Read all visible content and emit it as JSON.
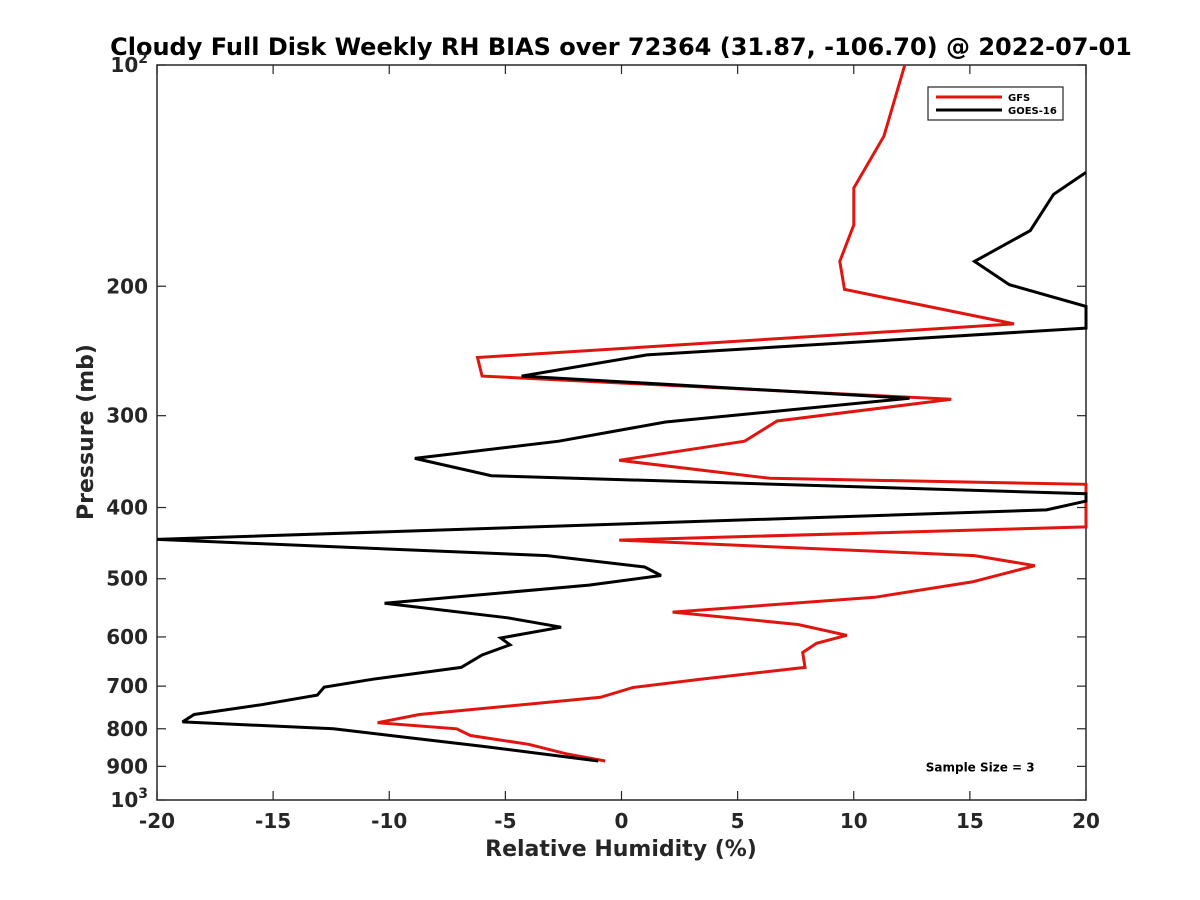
{
  "chart_data": {
    "type": "line",
    "title": "Cloudy Full Disk Weekly RH BIAS over 72364 (31.87, -106.70) @ 2022-07-01",
    "xlabel": "Relative Humidity (%)",
    "ylabel": "Pressure (mb)",
    "xlim": [
      -20,
      20
    ],
    "ylim": [
      100,
      1000
    ],
    "yscale": "log",
    "y_reversed": true,
    "x_ticks": [
      "-20",
      "-15",
      "-10",
      "-5",
      "0",
      "5",
      "10",
      "15",
      "20"
    ],
    "y_ticks": [
      {
        "value": 100,
        "base": "10",
        "exp": "2"
      },
      {
        "value": 200,
        "label": "200"
      },
      {
        "value": 300,
        "label": "300"
      },
      {
        "value": 400,
        "label": "400"
      },
      {
        "value": 500,
        "label": "500"
      },
      {
        "value": 600,
        "label": "600"
      },
      {
        "value": 700,
        "label": "700"
      },
      {
        "value": 800,
        "label": "800"
      },
      {
        "value": 900,
        "label": "900"
      },
      {
        "value": 1000,
        "base": "10",
        "exp": "3"
      }
    ],
    "grid": false,
    "legend_position": "top-right",
    "series": [
      {
        "name": "GFS",
        "color": "#e0150f",
        "points": [
          [
            12.2,
            100
          ],
          [
            11.3,
            125
          ],
          [
            10.0,
            147
          ],
          [
            10.0,
            165
          ],
          [
            9.4,
            185
          ],
          [
            9.6,
            202
          ],
          [
            16.9,
            225
          ],
          [
            -6.2,
            250
          ],
          [
            -6.0,
            265
          ],
          [
            14.2,
            285
          ],
          [
            6.7,
            305
          ],
          [
            5.3,
            325
          ],
          [
            -0.1,
            345
          ],
          [
            6.4,
            365
          ],
          [
            20,
            372
          ],
          [
            20,
            425
          ],
          [
            -0.1,
            443
          ],
          [
            15.2,
            465
          ],
          [
            17.8,
            480
          ],
          [
            15.1,
            505
          ],
          [
            10.9,
            530
          ],
          [
            2.2,
            555
          ],
          [
            7.6,
            577
          ],
          [
            9.7,
            597
          ],
          [
            8.4,
            612
          ],
          [
            7.8,
            630
          ],
          [
            7.9,
            660
          ],
          [
            3.4,
            685
          ],
          [
            0.5,
            703
          ],
          [
            -0.9,
            725
          ],
          [
            -8.7,
            765
          ],
          [
            -10.5,
            785
          ],
          [
            -7.1,
            800
          ],
          [
            -6.5,
            817
          ],
          [
            -4.0,
            840
          ],
          [
            -2.4,
            865
          ],
          [
            -0.7,
            885
          ]
        ]
      },
      {
        "name": "GOES-16",
        "color": "#000000",
        "points": [
          [
            20,
            140
          ],
          [
            18.6,
            150
          ],
          [
            17.6,
            168
          ],
          [
            15.2,
            185
          ],
          [
            16.7,
            199
          ],
          [
            20,
            213
          ],
          [
            20,
            228
          ],
          [
            1.1,
            248
          ],
          [
            -4.3,
            265
          ],
          [
            12.4,
            284
          ],
          [
            1.9,
            306
          ],
          [
            -2.7,
            325
          ],
          [
            -8.9,
            343
          ],
          [
            -5.6,
            362
          ],
          [
            20,
            383
          ],
          [
            20,
            392
          ],
          [
            18.3,
            403
          ],
          [
            -20,
            442
          ],
          [
            -3.2,
            465
          ],
          [
            1.0,
            482
          ],
          [
            1.7,
            495
          ],
          [
            -1.4,
            510
          ],
          [
            -10.2,
            540
          ],
          [
            -4.9,
            565
          ],
          [
            -2.6,
            582
          ],
          [
            -5.2,
            602
          ],
          [
            -4.8,
            615
          ],
          [
            -6.0,
            635
          ],
          [
            -6.9,
            660
          ],
          [
            -10.7,
            685
          ],
          [
            -12.8,
            702
          ],
          [
            -13.1,
            720
          ],
          [
            -15.5,
            742
          ],
          [
            -18.4,
            765
          ],
          [
            -18.9,
            783
          ],
          [
            -12.4,
            800
          ],
          [
            -9.5,
            820
          ],
          [
            -6.0,
            845
          ],
          [
            -1.0,
            885
          ]
        ]
      }
    ],
    "annotations": [
      {
        "text": "Sample Size = 3",
        "x": 13.1,
        "y": 900
      }
    ]
  }
}
